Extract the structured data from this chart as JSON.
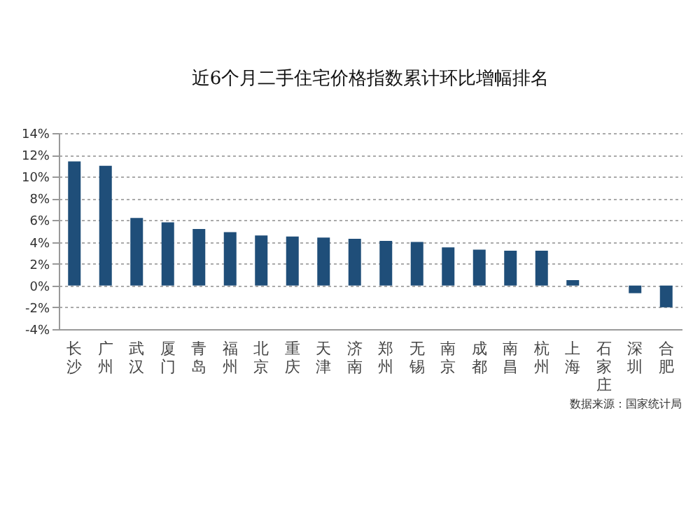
{
  "chart_data": {
    "type": "bar",
    "title": "近6个月二手住宅价格指数累计环比增幅排名",
    "categories": [
      "长沙",
      "广州",
      "武汉",
      "厦门",
      "青岛",
      "福州",
      "北京",
      "重庆",
      "天津",
      "济南",
      "郑州",
      "无锡",
      "南京",
      "成都",
      "南昌",
      "杭州",
      "上海",
      "石家庄",
      "深圳",
      "合肥"
    ],
    "values": [
      11.4,
      11.0,
      6.2,
      5.8,
      5.2,
      4.9,
      4.6,
      4.5,
      4.4,
      4.3,
      4.1,
      4.0,
      3.5,
      3.3,
      3.2,
      3.2,
      0.5,
      0,
      -0.7,
      -2.0
    ],
    "color": "#1f4e79",
    "ylim": [
      -4,
      14
    ],
    "yticks": [
      {
        "value": -4,
        "label": "-4%"
      },
      {
        "value": -2,
        "label": "-2%"
      },
      {
        "value": 0,
        "label": "0%"
      },
      {
        "value": 2,
        "label": "2%"
      },
      {
        "value": 4,
        "label": "4%"
      },
      {
        "value": 6,
        "label": "6%"
      },
      {
        "value": 8,
        "label": "8%"
      },
      {
        "value": 10,
        "label": "10%"
      },
      {
        "value": 12,
        "label": "12%"
      },
      {
        "value": 14,
        "label": "14%"
      }
    ],
    "grid": "y",
    "annotations": [
      "数据来源：国家统计局"
    ]
  }
}
